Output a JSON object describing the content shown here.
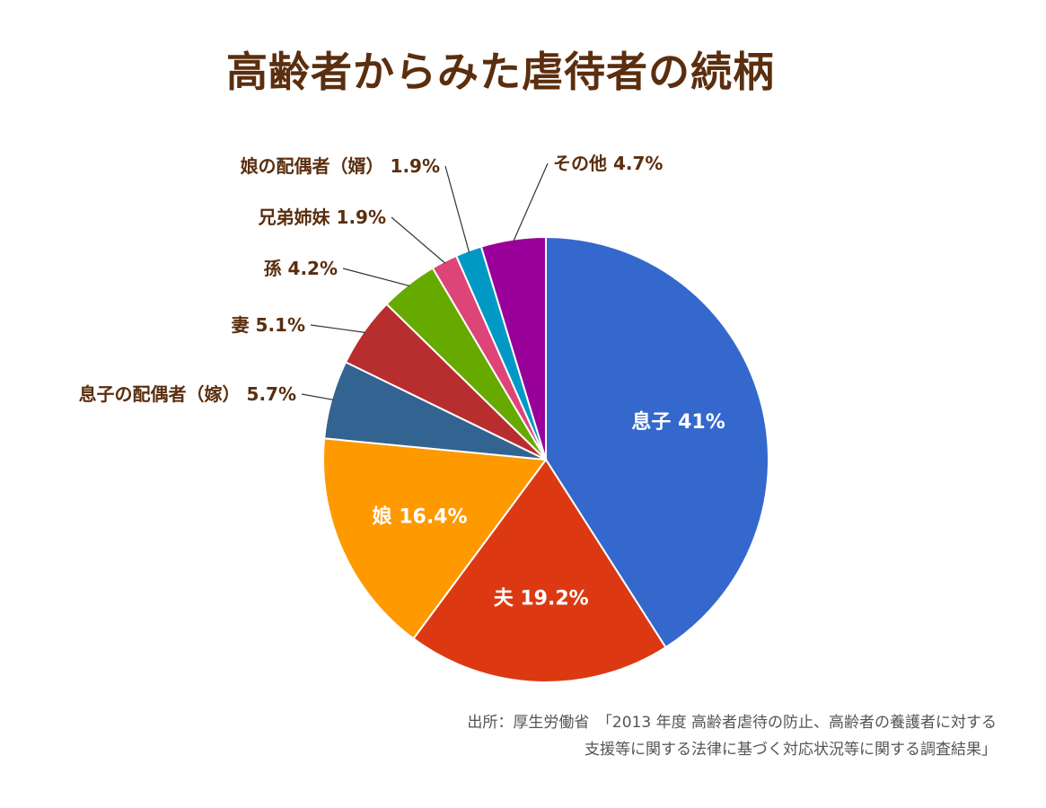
{
  "chart_data": {
    "type": "pie",
    "title": "高齢者からみた虐待者の続柄",
    "slices": [
      {
        "label": "息子",
        "value": 41,
        "value_text": "41%",
        "color": "#3468cc",
        "label_inside": true
      },
      {
        "label": "夫",
        "value": 19.2,
        "value_text": "19.2%",
        "color": "#dc3912",
        "label_inside": true
      },
      {
        "label": "娘",
        "value": 16.4,
        "value_text": "16.4%",
        "color": "#ff9900",
        "label_inside": true
      },
      {
        "label": "息子の配偶者（嫁）",
        "value": 5.7,
        "value_text": "5.7%",
        "color": "#336391",
        "label_inside": false
      },
      {
        "label": "妻",
        "value": 5.1,
        "value_text": "5.1%",
        "color": "#b82e2e",
        "label_inside": false
      },
      {
        "label": "孫",
        "value": 4.2,
        "value_text": "4.2%",
        "color": "#66aa00",
        "label_inside": false
      },
      {
        "label": "兄弟姉妹",
        "value": 1.9,
        "value_text": "1.9%",
        "color": "#dd4477",
        "label_inside": false
      },
      {
        "label": "娘の配偶者（婿）",
        "value": 1.9,
        "value_text": "1.9%",
        "color": "#0099c6",
        "label_inside": false
      },
      {
        "label": "その他",
        "value": 4.7,
        "value_text": "4.7%",
        "color": "#990099",
        "label_inside": false
      }
    ]
  },
  "source": {
    "line1": "出所：厚生労働省　「2013 年度  高齢者虐待の防止、高齢者の養護者に対する",
    "line2": "支援等に関する法律に基づく対応状況等に関する調査結果」"
  }
}
